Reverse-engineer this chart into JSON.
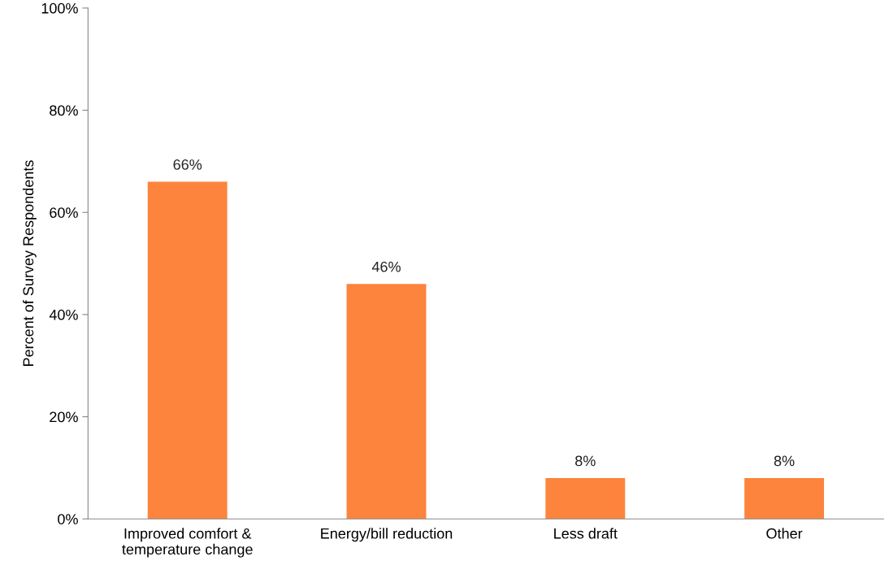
{
  "chart_data": {
    "type": "bar",
    "ylabel": "Percent of Survey Respondents",
    "categories": [
      "Improved comfort &\ntemperature change",
      "Energy/bill reduction",
      "Less draft",
      "Other"
    ],
    "values": [
      66,
      46,
      8,
      8
    ],
    "value_labels": [
      "66%",
      "46%",
      "8%",
      "8%"
    ],
    "color": "#fd843c",
    "ylim": [
      0,
      100
    ],
    "yticks": [
      {
        "value": 0,
        "label": "0%"
      },
      {
        "value": 20,
        "label": "20%"
      },
      {
        "value": 40,
        "label": "40%"
      },
      {
        "value": 60,
        "label": "60%"
      },
      {
        "value": 80,
        "label": "80%"
      },
      {
        "value": 100,
        "label": "100%"
      }
    ],
    "grid": false,
    "legend": false
  }
}
